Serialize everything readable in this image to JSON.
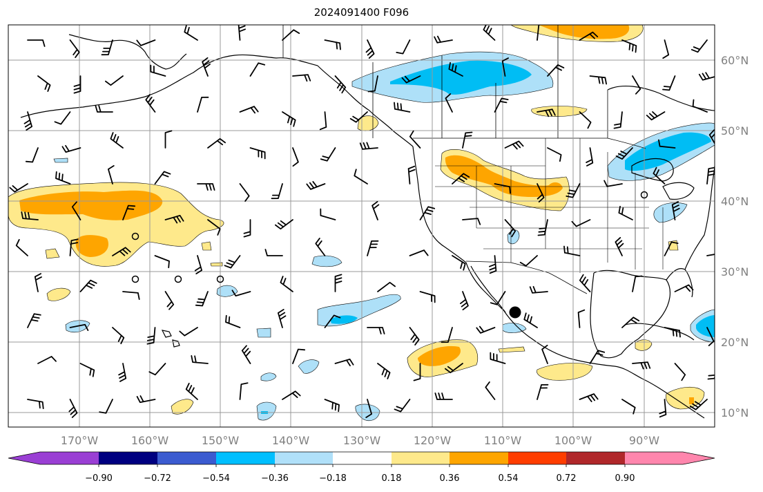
{
  "title": "2024091400 F096",
  "map": {
    "lon_labels": [
      "170°W",
      "160°W",
      "150°W",
      "140°W",
      "130°W",
      "120°W",
      "110°W",
      "100°W",
      "90°W"
    ],
    "lat_labels": [
      "60°N",
      "50°N",
      "40°N",
      "30°N",
      "20°N",
      "10°N"
    ],
    "colors": {
      "light_yellow": "#fee98b",
      "orange": "#fea500",
      "light_blue": "#aee0f8",
      "cyan": "#00bdf4",
      "marker": "#000000"
    }
  },
  "colorbar": {
    "colors": [
      "#9a3fd4",
      "#000080",
      "#3b5bd0",
      "#00bfff",
      "#b0e0f9",
      "#ffffff",
      "#fee98b",
      "#fea500",
      "#ff3d00",
      "#b0272a",
      "#ff86ad"
    ],
    "tick_labels": [
      "−0.90",
      "−0.72",
      "−0.54",
      "−0.36",
      "−0.18",
      "0.18",
      "0.36",
      "0.54",
      "0.72",
      "0.90"
    ]
  }
}
